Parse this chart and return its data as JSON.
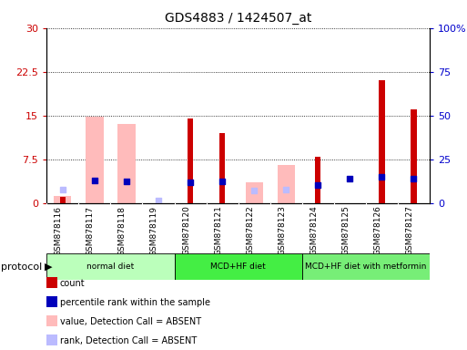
{
  "title": "GDS4883 / 1424507_at",
  "samples": [
    "GSM878116",
    "GSM878117",
    "GSM878118",
    "GSM878119",
    "GSM878120",
    "GSM878121",
    "GSM878122",
    "GSM878123",
    "GSM878124",
    "GSM878125",
    "GSM878126",
    "GSM878127"
  ],
  "count_values": [
    1.0,
    null,
    null,
    null,
    14.5,
    12.0,
    null,
    null,
    8.0,
    null,
    21.0,
    16.0
  ],
  "percentile_values": [
    null,
    13.0,
    12.5,
    null,
    12.0,
    12.5,
    null,
    null,
    10.5,
    14.0,
    15.0,
    14.0
  ],
  "absent_value_values": [
    1.2,
    14.8,
    13.5,
    null,
    null,
    null,
    3.5,
    6.5,
    null,
    null,
    null,
    null
  ],
  "absent_rank_values": [
    7.5,
    null,
    null,
    1.5,
    null,
    null,
    7.0,
    7.5,
    null,
    null,
    null,
    null
  ],
  "left_ylim": [
    0,
    30
  ],
  "right_ylim": [
    0,
    100
  ],
  "left_yticks": [
    0,
    7.5,
    15,
    22.5,
    30
  ],
  "right_yticks": [
    0,
    25,
    50,
    75,
    100
  ],
  "left_yticklabels": [
    "0",
    "7.5",
    "15",
    "22.5",
    "30"
  ],
  "right_yticklabels": [
    "0",
    "25",
    "50",
    "75",
    "100%"
  ],
  "left_tick_color": "#cc0000",
  "right_tick_color": "#0000cc",
  "color_count": "#cc0000",
  "color_percentile": "#0000bb",
  "color_absent_value": "#ffbbbb",
  "color_absent_rank": "#bbbbff",
  "proto_info": [
    [
      0,
      3,
      "normal diet",
      "#bbffbb"
    ],
    [
      4,
      7,
      "MCD+HF diet",
      "#44ee44"
    ],
    [
      8,
      11,
      "MCD+HF diet with metformin",
      "#77ee77"
    ]
  ],
  "grid_color": "#000000",
  "bg_color": "#ffffff",
  "plot_bg": "#ffffff",
  "xtick_area_color": "#d8d8d8"
}
